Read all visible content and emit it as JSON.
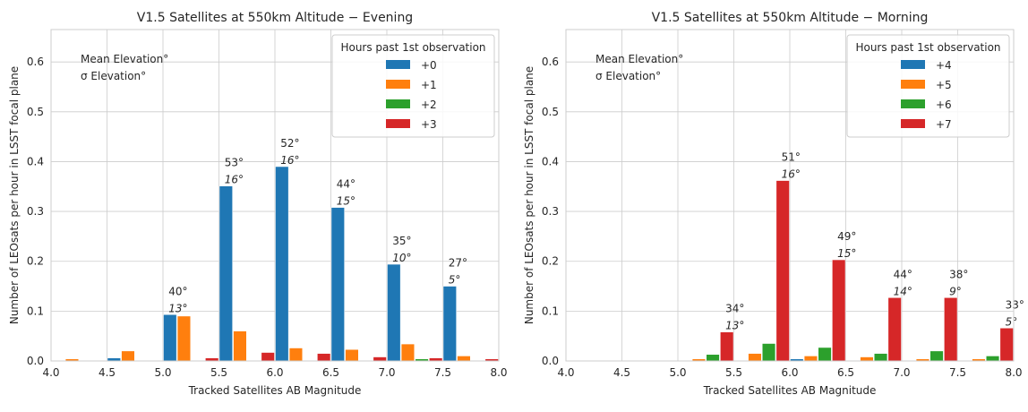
{
  "chart_data": [
    {
      "type": "bar",
      "title": "V1.5 Satellites at 550km Altitude − Evening",
      "xlabel": "Tracked Satellites AB Magnitude",
      "ylabel": "Number of LEOsats per hour in LSST focal plane",
      "xlim": [
        4.0,
        8.0
      ],
      "ylim": [
        0,
        0.665
      ],
      "xticks": [
        "4.0",
        "4.5",
        "5.0",
        "5.5",
        "6.0",
        "6.5",
        "7.0",
        "7.5",
        "8.0"
      ],
      "yticks": [
        "0.0",
        "0.1",
        "0.2",
        "0.3",
        "0.4",
        "0.5",
        "0.6"
      ],
      "bin_starts": [
        4.0,
        4.5,
        5.0,
        5.5,
        6.0,
        6.5,
        7.0,
        7.5
      ],
      "bin_width": 0.5,
      "legend_title": "Hours past 1st observation",
      "legend_position": "top-right",
      "corner_text": [
        "Mean Elevation°",
        "σ Elevation°"
      ],
      "series": [
        {
          "name": "+0",
          "color": "#1f77b4",
          "values": [
            0,
            0.006,
            0.093,
            0.351,
            0.39,
            0.308,
            0.194,
            0.15
          ]
        },
        {
          "name": "+1",
          "color": "#ff7f0e",
          "values": [
            0.004,
            0.02,
            0.09,
            0.06,
            0.026,
            0.023,
            0.034,
            0.01
          ]
        },
        {
          "name": "+2",
          "color": "#2ca02c",
          "values": [
            0,
            0,
            0,
            0,
            0,
            0,
            0.004,
            0
          ]
        },
        {
          "name": "+3",
          "color": "#d62728",
          "values": [
            0,
            0,
            0.006,
            0.017,
            0.015,
            0.008,
            0.006,
            0.004
          ]
        }
      ],
      "annotations": [
        {
          "x": 5.05,
          "mean": "40°",
          "sigma": "13°",
          "y": 0.093
        },
        {
          "x": 5.55,
          "mean": "53°",
          "sigma": "16°",
          "y": 0.351
        },
        {
          "x": 6.05,
          "mean": "52°",
          "sigma": "16°",
          "y": 0.39
        },
        {
          "x": 6.55,
          "mean": "44°",
          "sigma": "15°",
          "y": 0.308
        },
        {
          "x": 7.05,
          "mean": "35°",
          "sigma": "10°",
          "y": 0.194
        },
        {
          "x": 7.55,
          "mean": "27°",
          "sigma": "5°",
          "y": 0.15
        }
      ]
    },
    {
      "type": "bar",
      "title": "V1.5 Satellites at 550km Altitude − Morning",
      "xlabel": "Tracked Satellites AB Magnitude",
      "ylabel": "Number of LEOsats per hour in LSST focal plane",
      "xlim": [
        4.0,
        8.0
      ],
      "ylim": [
        0,
        0.665
      ],
      "xticks": [
        "4.0",
        "4.5",
        "5.0",
        "5.5",
        "6.0",
        "6.5",
        "7.0",
        "7.5",
        "8.0"
      ],
      "yticks": [
        "0.0",
        "0.1",
        "0.2",
        "0.3",
        "0.4",
        "0.5",
        "0.6"
      ],
      "bin_starts": [
        4.0,
        4.5,
        5.0,
        5.5,
        6.0,
        6.5,
        7.0,
        7.5
      ],
      "bin_width": 0.5,
      "legend_title": "Hours past 1st observation",
      "legend_position": "top-right",
      "corner_text": [
        "Mean Elevation°",
        "σ Elevation°"
      ],
      "series": [
        {
          "name": "+4",
          "color": "#1f77b4",
          "values": [
            0,
            0,
            0,
            0,
            0.004,
            0,
            0,
            0
          ]
        },
        {
          "name": "+5",
          "color": "#ff7f0e",
          "values": [
            0,
            0,
            0.004,
            0.015,
            0.01,
            0.008,
            0.004,
            0.004
          ]
        },
        {
          "name": "+6",
          "color": "#2ca02c",
          "values": [
            0,
            0,
            0.013,
            0.035,
            0.027,
            0.015,
            0.02,
            0.01
          ]
        },
        {
          "name": "+7",
          "color": "#d62728",
          "values": [
            0,
            0,
            0.058,
            0.362,
            0.203,
            0.127,
            0.127,
            0.066
          ]
        }
      ],
      "annotations": [
        {
          "x": 5.425,
          "mean": "34°",
          "sigma": "13°",
          "y": 0.058
        },
        {
          "x": 5.925,
          "mean": "51°",
          "sigma": "16°",
          "y": 0.362
        },
        {
          "x": 6.425,
          "mean": "49°",
          "sigma": "15°",
          "y": 0.203
        },
        {
          "x": 6.925,
          "mean": "44°",
          "sigma": "14°",
          "y": 0.127
        },
        {
          "x": 7.425,
          "mean": "38°",
          "sigma": "9°",
          "y": 0.127
        },
        {
          "x": 7.925,
          "mean": "33°",
          "sigma": "5°",
          "y": 0.066
        }
      ]
    }
  ]
}
